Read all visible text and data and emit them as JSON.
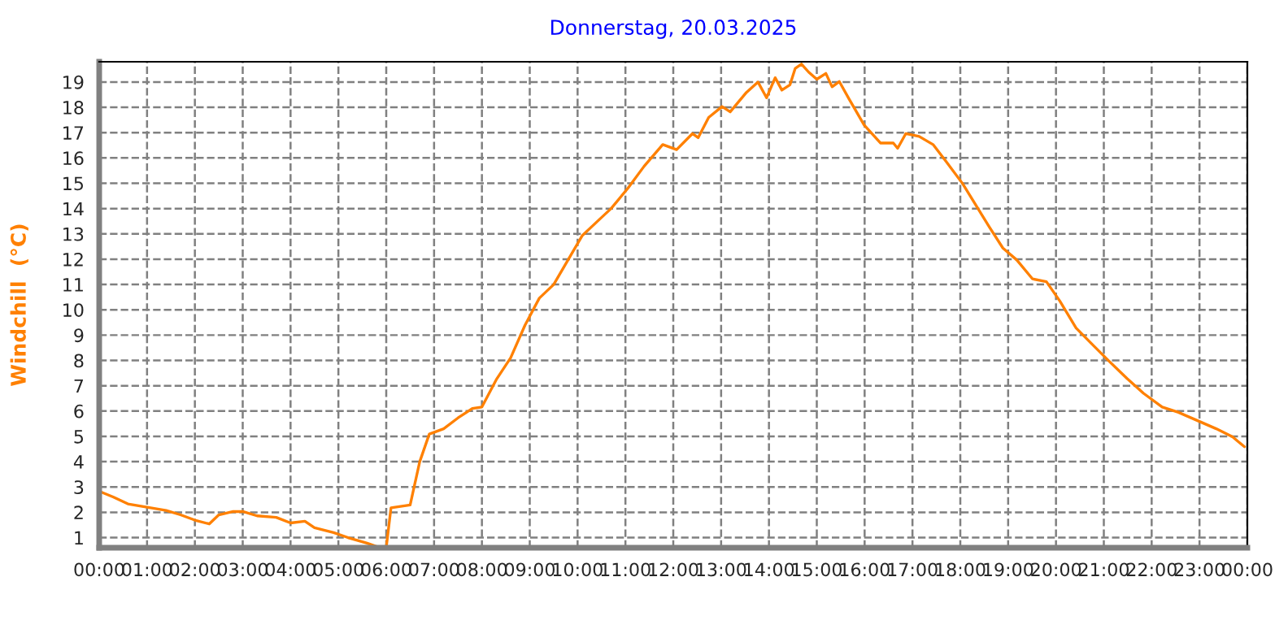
{
  "chart_data": {
    "type": "line",
    "title": "Donnerstag, 20.03.2025",
    "ylabel": "Windchill  (°C)",
    "xlim": [
      0,
      24
    ],
    "ylim": [
      0.6,
      19.8
    ],
    "xticks": [
      {
        "value": 0,
        "label": "00:00"
      },
      {
        "value": 1,
        "label": "01:00"
      },
      {
        "value": 2,
        "label": "02:00"
      },
      {
        "value": 3,
        "label": "03:00"
      },
      {
        "value": 4,
        "label": "04:00"
      },
      {
        "value": 5,
        "label": "05:00"
      },
      {
        "value": 6,
        "label": "06:00"
      },
      {
        "value": 7,
        "label": "07:00"
      },
      {
        "value": 8,
        "label": "08:00"
      },
      {
        "value": 9,
        "label": "09:00"
      },
      {
        "value": 10,
        "label": "10:00"
      },
      {
        "value": 11,
        "label": "11:00"
      },
      {
        "value": 12,
        "label": "12:00"
      },
      {
        "value": 13,
        "label": "13:00"
      },
      {
        "value": 14,
        "label": "14:00"
      },
      {
        "value": 15,
        "label": "15:00"
      },
      {
        "value": 16,
        "label": "16:00"
      },
      {
        "value": 17,
        "label": "17:00"
      },
      {
        "value": 18,
        "label": "18:00"
      },
      {
        "value": 19,
        "label": "19:00"
      },
      {
        "value": 20,
        "label": "20:00"
      },
      {
        "value": 21,
        "label": "21:00"
      },
      {
        "value": 22,
        "label": "22:00"
      },
      {
        "value": 23,
        "label": "23:00"
      },
      {
        "value": 24,
        "label": "00:00"
      }
    ],
    "yticks": [
      1,
      2,
      3,
      4,
      5,
      6,
      7,
      8,
      9,
      10,
      11,
      12,
      13,
      14,
      15,
      16,
      17,
      18,
      19
    ],
    "grid": true,
    "series": [
      {
        "color": "#ff8000",
        "x": [
          0,
          0.3,
          0.6,
          1.0,
          1.4,
          1.7,
          2.0,
          2.3,
          2.5,
          2.8,
          3.0,
          3.3,
          3.7,
          4.0,
          4.3,
          4.5,
          4.9,
          5.2,
          5.6,
          5.85,
          6.0,
          6.1,
          6.5,
          6.7,
          6.9,
          7.2,
          7.5,
          7.8,
          8.0,
          8.3,
          8.6,
          8.9,
          9.2,
          9.5,
          9.8,
          10.1,
          10.4,
          10.7,
          11.05,
          11.39,
          11.78,
          12.07,
          12.4,
          12.52,
          12.74,
          13.02,
          13.19,
          13.53,
          13.77,
          13.95,
          14.13,
          14.27,
          14.44,
          14.55,
          14.68,
          14.83,
          15.0,
          15.19,
          15.32,
          15.47,
          15.68,
          15.99,
          16.33,
          16.6,
          16.69,
          16.86,
          17.14,
          17.43,
          17.71,
          18.05,
          18.33,
          18.61,
          18.89,
          19.18,
          19.51,
          19.8,
          20.08,
          20.42,
          20.76,
          21.1,
          21.49,
          21.83,
          22.22,
          22.56,
          22.96,
          23.35,
          23.69,
          23.94
        ],
        "values": [
          2.83,
          2.6,
          2.33,
          2.2,
          2.07,
          1.9,
          1.69,
          1.54,
          1.9,
          2.03,
          2.03,
          1.86,
          1.8,
          1.58,
          1.65,
          1.39,
          1.2,
          1.0,
          0.78,
          0.61,
          0.61,
          2.18,
          2.29,
          4.0,
          5.09,
          5.3,
          5.73,
          6.1,
          6.16,
          7.24,
          8.1,
          9.39,
          10.46,
          11.0,
          11.97,
          12.94,
          13.47,
          14.0,
          14.8,
          15.67,
          16.53,
          16.33,
          16.96,
          16.8,
          17.6,
          18.03,
          17.82,
          18.59,
          19.0,
          18.38,
          19.17,
          18.68,
          18.89,
          19.54,
          19.71,
          19.39,
          19.11,
          19.34,
          18.81,
          19.02,
          18.31,
          17.3,
          16.59,
          16.59,
          16.38,
          16.96,
          16.85,
          16.53,
          15.84,
          14.98,
          14.12,
          13.26,
          12.44,
          11.97,
          11.22,
          11.11,
          10.35,
          9.28,
          8.63,
          7.99,
          7.28,
          6.7,
          6.16,
          5.95,
          5.62,
          5.3,
          4.98,
          4.59
        ]
      }
    ]
  }
}
